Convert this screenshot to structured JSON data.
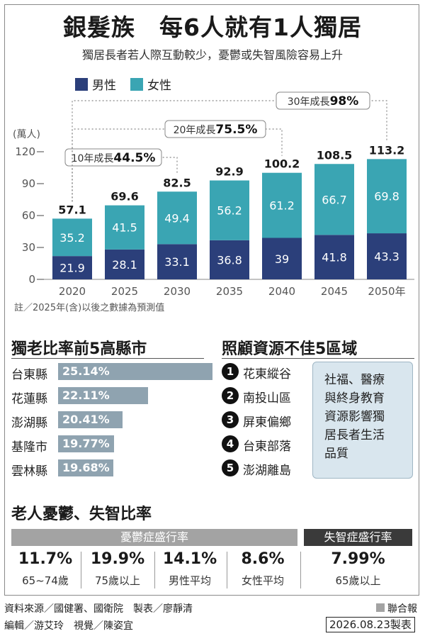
{
  "header": {
    "title": "銀髮族　每6人就有1人獨居",
    "subtitle": "獨居長者若人際互動較少，憂鬱或失智風險容易上升"
  },
  "colors": {
    "male": "#2b3f7a",
    "female": "#3aa5b3",
    "rank_bar": "#8fa3b0",
    "band_gray": "#a3a3a3",
    "band_dark": "#3a3a3a"
  },
  "chart_data": {
    "type": "bar",
    "stacked": true,
    "categories": [
      "2020",
      "2025",
      "2030",
      "2035",
      "2040",
      "2045",
      "2050年"
    ],
    "series": [
      {
        "name": "男性",
        "values": [
          21.9,
          28.1,
          33.1,
          36.8,
          39,
          41.8,
          43.3
        ]
      },
      {
        "name": "女性",
        "values": [
          35.2,
          41.5,
          49.4,
          56.2,
          61.2,
          66.7,
          69.8
        ]
      }
    ],
    "totals": [
      57.1,
      69.6,
      82.5,
      92.9,
      100.2,
      108.5,
      113.2
    ],
    "ylabel": "(萬人)",
    "ylim": [
      0,
      120
    ],
    "yticks": [
      0,
      30,
      60,
      90,
      120
    ],
    "legend_position": "top-left",
    "annotations": [
      {
        "label": "10年成長",
        "value": "44.5%"
      },
      {
        "label": "20年成長",
        "value": "75.5%"
      },
      {
        "label": "30年成長",
        "value": "98%"
      }
    ],
    "note": "註／2025年(含)以後之數據為預測值"
  },
  "ranking": {
    "title": "獨老比率前5高縣市",
    "items": [
      {
        "county": "台東縣",
        "value": "25.14%",
        "pct": 25.14
      },
      {
        "county": "花蓮縣",
        "value": "22.11%",
        "pct": 22.11
      },
      {
        "county": "澎湖縣",
        "value": "20.41%",
        "pct": 20.41
      },
      {
        "county": "基隆市",
        "value": "19.77%",
        "pct": 19.77
      },
      {
        "county": "雲林縣",
        "value": "19.68%",
        "pct": 19.68
      }
    ]
  },
  "care": {
    "title": "照顧資源不佳5區域",
    "items": [
      {
        "num": "1",
        "name": "花東縱谷"
      },
      {
        "num": "2",
        "name": "南投山區"
      },
      {
        "num": "3",
        "name": "屏東偏鄉"
      },
      {
        "num": "4",
        "name": "台東部落"
      },
      {
        "num": "5",
        "name": "澎湖離島"
      }
    ],
    "note_lines": [
      "社福、醫療",
      "與終身教育",
      "資源影響獨",
      "居長者生活",
      "品質"
    ]
  },
  "elderly": {
    "title": "老人憂鬱、失智比率",
    "depression_header": "憂鬱症盛行率",
    "dementia_header": "失智症盛行率",
    "stats": [
      {
        "value": "11.7%",
        "label": "65~74歲"
      },
      {
        "value": "19.9%",
        "label": "75歲以上"
      },
      {
        "value": "14.1%",
        "label": "男性平均"
      },
      {
        "value": "8.6%",
        "label": "女性平均"
      },
      {
        "value": "7.99%",
        "label": "65歲以上"
      }
    ]
  },
  "footer": {
    "source": "資料來源／國健署、國衛院　製表／廖靜清",
    "editor": "編輯／游艾玲　視覺／陳姿宜",
    "brand": "聯合報",
    "date": "2026.08.23製表"
  }
}
